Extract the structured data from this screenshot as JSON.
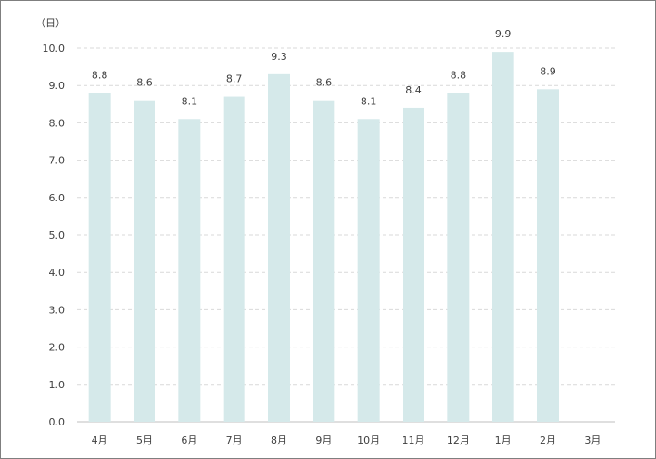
{
  "chart_data": {
    "type": "bar",
    "y_unit": "（日）",
    "categories": [
      "4月",
      "5月",
      "6月",
      "7月",
      "8月",
      "9月",
      "10月",
      "11月",
      "12月",
      "1月",
      "2月",
      "3月"
    ],
    "values": [
      8.8,
      8.6,
      8.1,
      8.7,
      9.3,
      8.6,
      8.1,
      8.4,
      8.8,
      9.9,
      8.9,
      null
    ],
    "value_labels": [
      "8.8",
      "8.6",
      "8.1",
      "8.7",
      "9.3",
      "8.6",
      "8.1",
      "8.4",
      "8.8",
      "9.9",
      "8.9",
      ""
    ],
    "ylim": [
      0,
      10
    ],
    "yticks": [
      "0.0",
      "1.0",
      "2.0",
      "3.0",
      "4.0",
      "5.0",
      "6.0",
      "7.0",
      "8.0",
      "9.0",
      "10.0"
    ],
    "grid": true,
    "legend": "none",
    "bar_color": "#d5e9ea",
    "grid_color": "#d9d9d9",
    "axis_color": "#bfbfbf"
  }
}
